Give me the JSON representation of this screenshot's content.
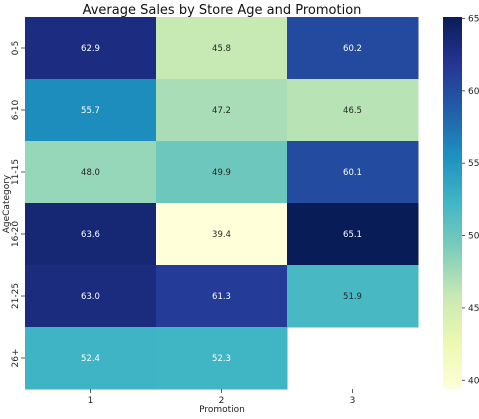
{
  "chart_data": {
    "type": "heatmap",
    "title": "Average Sales by Store Age and Promotion",
    "xlabel": "Promotion",
    "ylabel": "AgeCategory",
    "x_categories": [
      "1",
      "2",
      "3"
    ],
    "y_categories": [
      "0-5",
      "6-10",
      "11-15",
      "16-20",
      "21-25",
      "26+"
    ],
    "values": [
      [
        62.9,
        45.8,
        60.2
      ],
      [
        55.7,
        47.2,
        46.5
      ],
      [
        48.0,
        49.9,
        60.1
      ],
      [
        63.6,
        39.4,
        65.1
      ],
      [
        63.0,
        61.3,
        51.9
      ],
      [
        52.4,
        52.3,
        null
      ]
    ],
    "value_labels": [
      [
        "62.9",
        "45.8",
        "60.2"
      ],
      [
        "55.7",
        "47.2",
        "46.5"
      ],
      [
        "48.0",
        "49.9",
        "60.1"
      ],
      [
        "63.6",
        "39.4",
        "65.1"
      ],
      [
        "63.0",
        "61.3",
        "51.9"
      ],
      [
        "52.4",
        "52.3",
        ""
      ]
    ],
    "colormap": "YlGnBu",
    "color_range": [
      39.4,
      65.1
    ],
    "colorbar_ticks": [
      40,
      45,
      50,
      55,
      60,
      65
    ],
    "colorbar_tick_labels": [
      "40",
      "45",
      "50",
      "55",
      "60",
      "65"
    ],
    "grid": false,
    "legend": "colorbar-right"
  }
}
